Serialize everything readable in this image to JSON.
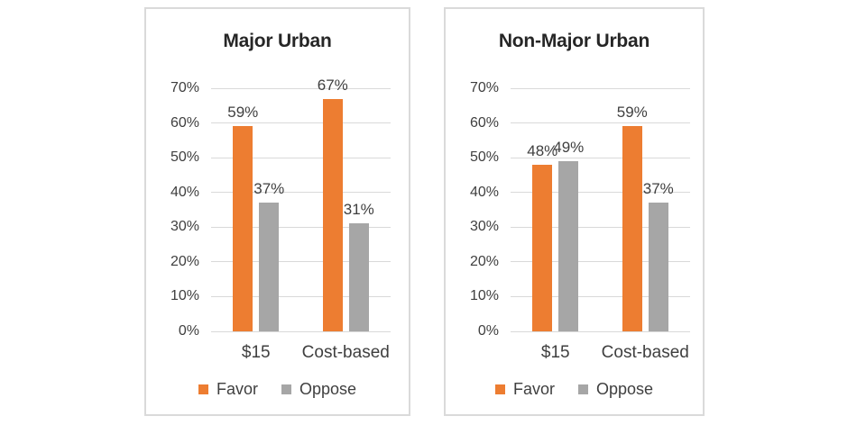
{
  "colors": {
    "favor": "#ED7D31",
    "oppose": "#A6A6A6",
    "gridline": "#D9D9D9",
    "panel_border": "#DADADA",
    "label_text": "#3F3F3F",
    "title_text": "#262626",
    "background": "#FFFFFF"
  },
  "chart_data": [
    {
      "type": "bar",
      "title": "Major Urban",
      "categories": [
        "$15",
        "Cost-based"
      ],
      "series": [
        {
          "name": "Favor",
          "color": "#ED7D31",
          "values": [
            59,
            67
          ],
          "labels": [
            "59%",
            "67%"
          ]
        },
        {
          "name": "Oppose",
          "color": "#A6A6A6",
          "values": [
            37,
            31
          ],
          "labels": [
            "37%",
            "31%"
          ]
        }
      ],
      "xlabel": "",
      "ylabel": "",
      "ylim": [
        0,
        70
      ],
      "ytick_step": 10,
      "yticks": [
        "0%",
        "10%",
        "20%",
        "30%",
        "40%",
        "50%",
        "60%",
        "70%"
      ],
      "grid": true,
      "legend_position": "bottom",
      "legend": [
        {
          "label": "Favor",
          "color": "#ED7D31"
        },
        {
          "label": "Oppose",
          "color": "#A6A6A6"
        }
      ]
    },
    {
      "type": "bar",
      "title": "Non-Major Urban",
      "categories": [
        "$15",
        "Cost-based"
      ],
      "series": [
        {
          "name": "Favor",
          "color": "#ED7D31",
          "values": [
            48,
            59
          ],
          "labels": [
            "48%",
            "59%"
          ]
        },
        {
          "name": "Oppose",
          "color": "#A6A6A6",
          "values": [
            49,
            37
          ],
          "labels": [
            "49%",
            "37%"
          ]
        }
      ],
      "xlabel": "",
      "ylabel": "",
      "ylim": [
        0,
        70
      ],
      "ytick_step": 10,
      "yticks": [
        "0%",
        "10%",
        "20%",
        "30%",
        "40%",
        "50%",
        "60%",
        "70%"
      ],
      "grid": true,
      "legend_position": "bottom",
      "legend": [
        {
          "label": "Favor",
          "color": "#ED7D31"
        },
        {
          "label": "Oppose",
          "color": "#A6A6A6"
        }
      ]
    }
  ]
}
